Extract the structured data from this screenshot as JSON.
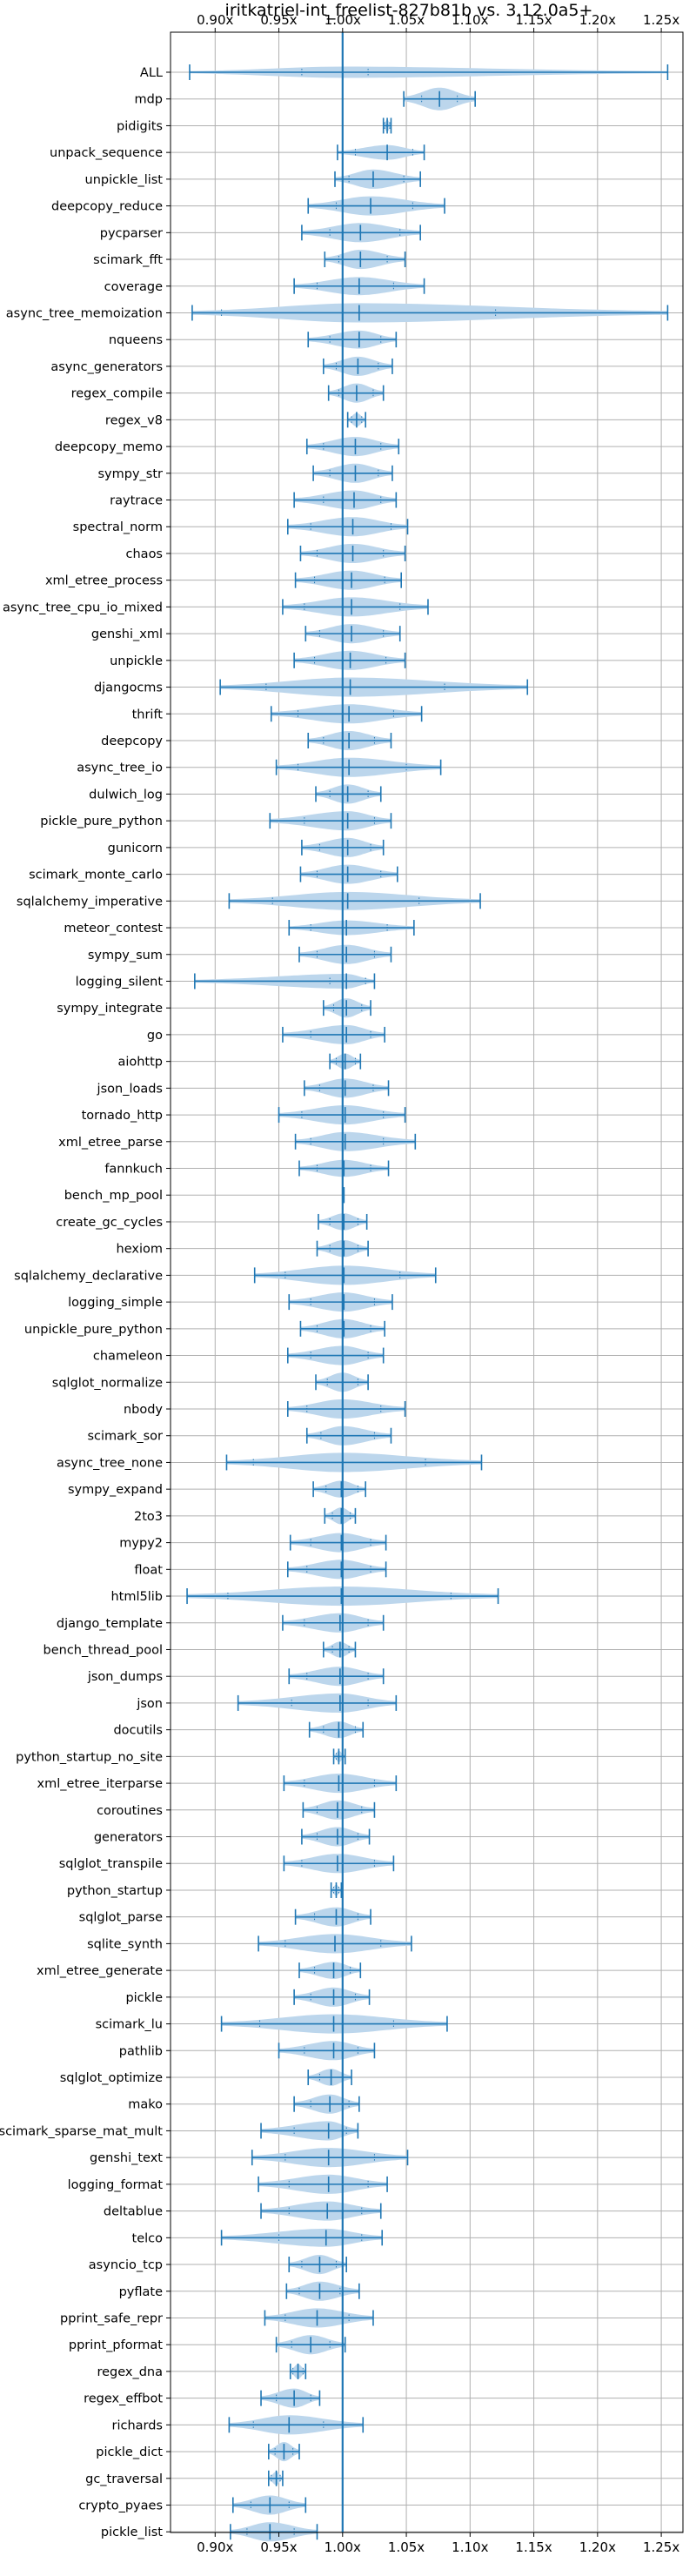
{
  "chart_data": {
    "type": "violin",
    "title": "iritkatriel-int_freelist-827b81b vs. 3.12.0a5+",
    "xlabel": "",
    "ylabel": "",
    "orientation": "horizontal",
    "xlim": [
      0.865,
      1.267
    ],
    "xticks": [
      0.9,
      0.95,
      1.0,
      1.05,
      1.1,
      1.15,
      1.2,
      1.25
    ],
    "xtick_labels": [
      "0.90x",
      "0.95x",
      "1.00x",
      "1.05x",
      "1.10x",
      "1.15x",
      "1.20x",
      "1.25x"
    ],
    "reference_line": 1.0,
    "grid": true,
    "colors": {
      "violin_fill": "#bcd6ec",
      "line": "#1f77b4",
      "grid": "#b0b0b0"
    },
    "benchmarks": [
      {
        "name": "ALL",
        "min": 0.88,
        "max": 1.255,
        "mean": 1.0,
        "median": 1.0,
        "q1": 0.968,
        "q3": 1.02,
        "width": 0.5
      },
      {
        "name": "mdp",
        "min": 1.048,
        "max": 1.104,
        "mean": 1.076,
        "median": 1.076,
        "q1": 1.062,
        "q3": 1.09,
        "width": 1.0
      },
      {
        "name": "pidigits",
        "min": 1.032,
        "max": 1.038,
        "mean": 1.035,
        "median": 1.035,
        "q1": 1.033,
        "q3": 1.037,
        "width": 0.55
      },
      {
        "name": "unpack_sequence",
        "min": 0.996,
        "max": 1.064,
        "mean": 1.035,
        "median": 1.035,
        "q1": 1.01,
        "q3": 1.055,
        "width": 0.65
      },
      {
        "name": "unpickle_list",
        "min": 0.994,
        "max": 1.061,
        "mean": 1.024,
        "median": 1.024,
        "q1": 1.005,
        "q3": 1.048,
        "width": 0.85
      },
      {
        "name": "deepcopy_reduce",
        "min": 0.973,
        "max": 1.08,
        "mean": 1.022,
        "median": 1.022,
        "q1": 0.995,
        "q3": 1.055,
        "width": 0.85
      },
      {
        "name": "pycparser",
        "min": 0.968,
        "max": 1.061,
        "mean": 1.014,
        "median": 1.014,
        "q1": 0.99,
        "q3": 1.045,
        "width": 0.85
      },
      {
        "name": "scimark_fft",
        "min": 0.986,
        "max": 1.049,
        "mean": 1.014,
        "median": 1.014,
        "q1": 0.997,
        "q3": 1.035,
        "width": 0.85
      },
      {
        "name": "coverage",
        "min": 0.962,
        "max": 1.064,
        "mean": 1.013,
        "median": 1.013,
        "q1": 0.98,
        "q3": 1.04,
        "width": 0.8
      },
      {
        "name": "async_tree_memoization",
        "min": 0.882,
        "max": 1.255,
        "mean": 1.013,
        "median": 1.013,
        "q1": 0.905,
        "q3": 1.12,
        "width": 0.85
      },
      {
        "name": "nqueens",
        "min": 0.973,
        "max": 1.042,
        "mean": 1.013,
        "median": 1.013,
        "q1": 0.99,
        "q3": 1.03,
        "width": 0.8
      },
      {
        "name": "async_generators",
        "min": 0.985,
        "max": 1.039,
        "mean": 1.012,
        "median": 1.012,
        "q1": 0.995,
        "q3": 1.028,
        "width": 0.85
      },
      {
        "name": "regex_compile",
        "min": 0.989,
        "max": 1.032,
        "mean": 1.011,
        "median": 1.011,
        "q1": 0.997,
        "q3": 1.024,
        "width": 0.85
      },
      {
        "name": "regex_v8",
        "min": 1.004,
        "max": 1.018,
        "mean": 1.011,
        "median": 1.011,
        "q1": 1.007,
        "q3": 1.015,
        "width": 0.6
      },
      {
        "name": "deepcopy_memo",
        "min": 0.972,
        "max": 1.044,
        "mean": 1.01,
        "median": 1.01,
        "q1": 0.985,
        "q3": 1.03,
        "width": 0.85
      },
      {
        "name": "sympy_str",
        "min": 0.977,
        "max": 1.039,
        "mean": 1.01,
        "median": 1.01,
        "q1": 0.99,
        "q3": 1.028,
        "width": 0.85
      },
      {
        "name": "raytrace",
        "min": 0.962,
        "max": 1.042,
        "mean": 1.009,
        "median": 1.009,
        "q1": 0.985,
        "q3": 1.03,
        "width": 0.85
      },
      {
        "name": "spectral_norm",
        "min": 0.957,
        "max": 1.051,
        "mean": 1.008,
        "median": 1.008,
        "q1": 0.975,
        "q3": 1.038,
        "width": 0.85
      },
      {
        "name": "chaos",
        "min": 0.967,
        "max": 1.049,
        "mean": 1.008,
        "median": 1.008,
        "q1": 0.98,
        "q3": 1.032,
        "width": 0.85
      },
      {
        "name": "xml_etree_process",
        "min": 0.963,
        "max": 1.046,
        "mean": 1.007,
        "median": 1.007,
        "q1": 0.978,
        "q3": 1.033,
        "width": 0.85
      },
      {
        "name": "async_tree_cpu_io_mixed",
        "min": 0.953,
        "max": 1.067,
        "mean": 1.007,
        "median": 1.007,
        "q1": 0.97,
        "q3": 1.045,
        "width": 0.85
      },
      {
        "name": "genshi_xml",
        "min": 0.971,
        "max": 1.045,
        "mean": 1.007,
        "median": 1.007,
        "q1": 0.982,
        "q3": 1.032,
        "width": 0.85
      },
      {
        "name": "unpickle",
        "min": 0.962,
        "max": 1.049,
        "mean": 1.006,
        "median": 1.006,
        "q1": 0.978,
        "q3": 1.034,
        "width": 0.85
      },
      {
        "name": "djangocms",
        "min": 0.904,
        "max": 1.145,
        "mean": 1.006,
        "median": 1.006,
        "q1": 0.94,
        "q3": 1.08,
        "width": 0.85
      },
      {
        "name": "thrift",
        "min": 0.944,
        "max": 1.062,
        "mean": 1.005,
        "median": 1.005,
        "q1": 0.965,
        "q3": 1.04,
        "width": 0.85
      },
      {
        "name": "deepcopy",
        "min": 0.973,
        "max": 1.038,
        "mean": 1.005,
        "median": 1.005,
        "q1": 0.985,
        "q3": 1.025,
        "width": 0.85
      },
      {
        "name": "async_tree_io",
        "min": 0.948,
        "max": 1.077,
        "mean": 1.005,
        "median": 1.005,
        "q1": 0.965,
        "q3": 1.05,
        "width": 0.85
      },
      {
        "name": "dulwich_log",
        "min": 0.979,
        "max": 1.03,
        "mean": 1.004,
        "median": 1.004,
        "q1": 0.99,
        "q3": 1.02,
        "width": 0.85
      },
      {
        "name": "pickle_pure_python",
        "min": 0.943,
        "max": 1.038,
        "mean": 1.004,
        "median": 1.004,
        "q1": 0.97,
        "q3": 1.025,
        "width": 0.85
      },
      {
        "name": "gunicorn",
        "min": 0.968,
        "max": 1.032,
        "mean": 1.004,
        "median": 1.004,
        "q1": 0.982,
        "q3": 1.022,
        "width": 0.85
      },
      {
        "name": "scimark_monte_carlo",
        "min": 0.967,
        "max": 1.043,
        "mean": 1.004,
        "median": 1.004,
        "q1": 0.98,
        "q3": 1.03,
        "width": 0.85
      },
      {
        "name": "sqlalchemy_imperative",
        "min": 0.911,
        "max": 1.108,
        "mean": 1.004,
        "median": 1.004,
        "q1": 0.945,
        "q3": 1.06,
        "width": 0.8
      },
      {
        "name": "meteor_contest",
        "min": 0.958,
        "max": 1.056,
        "mean": 1.003,
        "median": 1.003,
        "q1": 0.975,
        "q3": 1.035,
        "width": 0.65
      },
      {
        "name": "sympy_sum",
        "min": 0.966,
        "max": 1.038,
        "mean": 1.003,
        "median": 1.003,
        "q1": 0.98,
        "q3": 1.025,
        "width": 0.85
      },
      {
        "name": "logging_silent",
        "min": 0.884,
        "max": 1.025,
        "mean": 1.003,
        "median": 1.003,
        "q1": 0.99,
        "q3": 1.018,
        "width": 0.65
      },
      {
        "name": "sympy_integrate",
        "min": 0.985,
        "max": 1.022,
        "mean": 1.003,
        "median": 1.003,
        "q1": 0.993,
        "q3": 1.015,
        "width": 0.85
      },
      {
        "name": "go",
        "min": 0.953,
        "max": 1.033,
        "mean": 1.003,
        "median": 1.003,
        "q1": 0.975,
        "q3": 1.022,
        "width": 0.85
      },
      {
        "name": "aiohttp",
        "min": 0.99,
        "max": 1.014,
        "mean": 1.002,
        "median": 1.002,
        "q1": 0.995,
        "q3": 1.01,
        "width": 0.7
      },
      {
        "name": "json_loads",
        "min": 0.97,
        "max": 1.036,
        "mean": 1.002,
        "median": 1.002,
        "q1": 0.982,
        "q3": 1.024,
        "width": 0.85
      },
      {
        "name": "tornado_http",
        "min": 0.95,
        "max": 1.049,
        "mean": 1.002,
        "median": 1.002,
        "q1": 0.968,
        "q3": 1.032,
        "width": 0.85
      },
      {
        "name": "xml_etree_parse",
        "min": 0.963,
        "max": 1.057,
        "mean": 1.002,
        "median": 1.002,
        "q1": 0.975,
        "q3": 1.032,
        "width": 0.85
      },
      {
        "name": "fannkuch",
        "min": 0.966,
        "max": 1.036,
        "mean": 1.001,
        "median": 1.001,
        "q1": 0.98,
        "q3": 1.022,
        "width": 0.75
      },
      {
        "name": "bench_mp_pool",
        "min": 1.001,
        "max": 1.001,
        "mean": 1.001,
        "median": 1.001,
        "q1": 1.001,
        "q3": 1.001,
        "width": 0.0
      },
      {
        "name": "create_gc_cycles",
        "min": 0.981,
        "max": 1.019,
        "mean": 1.001,
        "median": 1.001,
        "q1": 0.99,
        "q3": 1.012,
        "width": 0.75
      },
      {
        "name": "hexiom",
        "min": 0.98,
        "max": 1.02,
        "mean": 1.001,
        "median": 1.001,
        "q1": 0.99,
        "q3": 1.012,
        "width": 0.75
      },
      {
        "name": "sqlalchemy_declarative",
        "min": 0.931,
        "max": 1.073,
        "mean": 1.001,
        "median": 1.001,
        "q1": 0.955,
        "q3": 1.045,
        "width": 0.85
      },
      {
        "name": "logging_simple",
        "min": 0.958,
        "max": 1.039,
        "mean": 1.001,
        "median": 1.001,
        "q1": 0.975,
        "q3": 1.025,
        "width": 0.85
      },
      {
        "name": "unpickle_pure_python",
        "min": 0.967,
        "max": 1.033,
        "mean": 1.001,
        "median": 1.001,
        "q1": 0.98,
        "q3": 1.022,
        "width": 0.85
      },
      {
        "name": "chameleon",
        "min": 0.957,
        "max": 1.032,
        "mean": 1.0,
        "median": 1.0,
        "q1": 0.975,
        "q3": 1.02,
        "width": 0.85
      },
      {
        "name": "sqlglot_normalize",
        "min": 0.979,
        "max": 1.02,
        "mean": 1.0,
        "median": 1.0,
        "q1": 0.988,
        "q3": 1.012,
        "width": 0.85
      },
      {
        "name": "nbody",
        "min": 0.957,
        "max": 1.049,
        "mean": 1.0,
        "median": 1.0,
        "q1": 0.972,
        "q3": 1.03,
        "width": 0.85
      },
      {
        "name": "scimark_sor",
        "min": 0.972,
        "max": 1.038,
        "mean": 1.0,
        "median": 1.0,
        "q1": 0.983,
        "q3": 1.025,
        "width": 0.85
      },
      {
        "name": "async_tree_none",
        "min": 0.909,
        "max": 1.109,
        "mean": 1.0,
        "median": 1.0,
        "q1": 0.93,
        "q3": 1.065,
        "width": 0.85
      },
      {
        "name": "sympy_expand",
        "min": 0.977,
        "max": 1.018,
        "mean": 0.999,
        "median": 0.999,
        "q1": 0.987,
        "q3": 1.012,
        "width": 0.75
      },
      {
        "name": "2to3",
        "min": 0.986,
        "max": 1.01,
        "mean": 0.999,
        "median": 0.999,
        "q1": 0.992,
        "q3": 1.006,
        "width": 0.75
      },
      {
        "name": "mypy2",
        "min": 0.959,
        "max": 1.034,
        "mean": 0.999,
        "median": 0.999,
        "q1": 0.975,
        "q3": 1.022,
        "width": 0.85
      },
      {
        "name": "float",
        "min": 0.957,
        "max": 1.034,
        "mean": 0.999,
        "median": 0.999,
        "q1": 0.972,
        "q3": 1.022,
        "width": 0.85
      },
      {
        "name": "html5lib",
        "min": 0.878,
        "max": 1.122,
        "mean": 0.999,
        "median": 0.999,
        "q1": 0.91,
        "q3": 1.085,
        "width": 0.85
      },
      {
        "name": "django_template",
        "min": 0.953,
        "max": 1.032,
        "mean": 0.998,
        "median": 0.998,
        "q1": 0.97,
        "q3": 1.02,
        "width": 0.85
      },
      {
        "name": "bench_thread_pool",
        "min": 0.985,
        "max": 1.01,
        "mean": 0.998,
        "median": 0.998,
        "q1": 0.992,
        "q3": 1.005,
        "width": 0.7
      },
      {
        "name": "json_dumps",
        "min": 0.958,
        "max": 1.032,
        "mean": 0.998,
        "median": 0.998,
        "q1": 0.972,
        "q3": 1.02,
        "width": 0.85
      },
      {
        "name": "json",
        "min": 0.918,
        "max": 1.042,
        "mean": 0.998,
        "median": 0.998,
        "q1": 0.96,
        "q3": 1.02,
        "width": 0.85
      },
      {
        "name": "docutils",
        "min": 0.974,
        "max": 1.016,
        "mean": 0.997,
        "median": 0.997,
        "q1": 0.985,
        "q3": 1.01,
        "width": 0.75
      },
      {
        "name": "python_startup_no_site",
        "min": 0.993,
        "max": 1.002,
        "mean": 0.997,
        "median": 0.997,
        "q1": 0.995,
        "q3": 1.0,
        "width": 0.5
      },
      {
        "name": "xml_etree_iterparse",
        "min": 0.954,
        "max": 1.042,
        "mean": 0.997,
        "median": 0.997,
        "q1": 0.97,
        "q3": 1.025,
        "width": 0.85
      },
      {
        "name": "coroutines",
        "min": 0.969,
        "max": 1.025,
        "mean": 0.996,
        "median": 0.996,
        "q1": 0.98,
        "q3": 1.015,
        "width": 0.85
      },
      {
        "name": "generators",
        "min": 0.968,
        "max": 1.021,
        "mean": 0.996,
        "median": 0.996,
        "q1": 0.98,
        "q3": 1.012,
        "width": 0.85
      },
      {
        "name": "sqlglot_transpile",
        "min": 0.954,
        "max": 1.04,
        "mean": 0.996,
        "median": 0.996,
        "q1": 0.968,
        "q3": 1.025,
        "width": 0.85
      },
      {
        "name": "python_startup",
        "min": 0.991,
        "max": 0.999,
        "mean": 0.995,
        "median": 0.995,
        "q1": 0.993,
        "q3": 0.997,
        "width": 0.5
      },
      {
        "name": "sqlglot_parse",
        "min": 0.963,
        "max": 1.022,
        "mean": 0.995,
        "median": 0.995,
        "q1": 0.978,
        "q3": 1.012,
        "width": 0.85
      },
      {
        "name": "sqlite_synth",
        "min": 0.934,
        "max": 1.054,
        "mean": 0.994,
        "median": 0.994,
        "q1": 0.955,
        "q3": 1.03,
        "width": 0.85
      },
      {
        "name": "xml_etree_generate",
        "min": 0.966,
        "max": 1.014,
        "mean": 0.993,
        "median": 0.993,
        "q1": 0.978,
        "q3": 1.006,
        "width": 0.75
      },
      {
        "name": "pickle",
        "min": 0.962,
        "max": 1.021,
        "mean": 0.993,
        "median": 0.993,
        "q1": 0.975,
        "q3": 1.01,
        "width": 0.85
      },
      {
        "name": "scimark_lu",
        "min": 0.905,
        "max": 1.082,
        "mean": 0.993,
        "median": 0.993,
        "q1": 0.935,
        "q3": 1.04,
        "width": 0.85
      },
      {
        "name": "pathlib",
        "min": 0.95,
        "max": 1.025,
        "mean": 0.993,
        "median": 0.993,
        "q1": 0.97,
        "q3": 1.012,
        "width": 0.85
      },
      {
        "name": "sqlglot_optimize",
        "min": 0.973,
        "max": 1.007,
        "mean": 0.991,
        "median": 0.991,
        "q1": 0.982,
        "q3": 1.0,
        "width": 0.75
      },
      {
        "name": "mako",
        "min": 0.962,
        "max": 1.013,
        "mean": 0.99,
        "median": 0.99,
        "q1": 0.975,
        "q3": 1.005,
        "width": 0.85
      },
      {
        "name": "scimark_sparse_mat_mult",
        "min": 0.936,
        "max": 1.012,
        "mean": 0.989,
        "median": 0.989,
        "q1": 0.962,
        "q3": 1.003,
        "width": 0.85
      },
      {
        "name": "genshi_text",
        "min": 0.929,
        "max": 1.051,
        "mean": 0.989,
        "median": 0.989,
        "q1": 0.955,
        "q3": 1.025,
        "width": 0.85
      },
      {
        "name": "logging_format",
        "min": 0.934,
        "max": 1.035,
        "mean": 0.989,
        "median": 0.989,
        "q1": 0.958,
        "q3": 1.02,
        "width": 0.85
      },
      {
        "name": "deltablue",
        "min": 0.936,
        "max": 1.03,
        "mean": 0.988,
        "median": 0.988,
        "q1": 0.958,
        "q3": 1.015,
        "width": 0.85
      },
      {
        "name": "telco",
        "min": 0.905,
        "max": 1.031,
        "mean": 0.987,
        "median": 0.987,
        "q1": 0.95,
        "q3": 1.015,
        "width": 0.8
      },
      {
        "name": "asyncio_tcp",
        "min": 0.958,
        "max": 1.003,
        "mean": 0.982,
        "median": 0.982,
        "q1": 0.968,
        "q3": 0.995,
        "width": 0.85
      },
      {
        "name": "pyflate",
        "min": 0.956,
        "max": 1.013,
        "mean": 0.982,
        "median": 0.982,
        "q1": 0.966,
        "q3": 0.998,
        "width": 0.85
      },
      {
        "name": "pprint_safe_repr",
        "min": 0.939,
        "max": 1.024,
        "mean": 0.98,
        "median": 0.98,
        "q1": 0.955,
        "q3": 1.005,
        "width": 0.85
      },
      {
        "name": "pprint_pformat",
        "min": 0.948,
        "max": 1.002,
        "mean": 0.975,
        "median": 0.975,
        "q1": 0.96,
        "q3": 0.99,
        "width": 0.85
      },
      {
        "name": "regex_dna",
        "min": 0.959,
        "max": 0.971,
        "mean": 0.965,
        "median": 0.965,
        "q1": 0.961,
        "q3": 0.969,
        "width": 0.65
      },
      {
        "name": "regex_effbot",
        "min": 0.936,
        "max": 0.982,
        "mean": 0.962,
        "median": 0.962,
        "q1": 0.948,
        "q3": 0.975,
        "width": 0.85
      },
      {
        "name": "richards",
        "min": 0.911,
        "max": 1.016,
        "mean": 0.958,
        "median": 0.958,
        "q1": 0.93,
        "q3": 0.985,
        "width": 0.85
      },
      {
        "name": "pickle_dict",
        "min": 0.942,
        "max": 0.966,
        "mean": 0.954,
        "median": 0.954,
        "q1": 0.947,
        "q3": 0.961,
        "width": 0.85
      },
      {
        "name": "gc_traversal",
        "min": 0.942,
        "max": 0.953,
        "mean": 0.948,
        "median": 0.948,
        "q1": 0.944,
        "q3": 0.951,
        "width": 0.6
      },
      {
        "name": "crypto_pyaes",
        "min": 0.914,
        "max": 0.971,
        "mean": 0.943,
        "median": 0.943,
        "q1": 0.928,
        "q3": 0.958,
        "width": 0.85
      },
      {
        "name": "pickle_list",
        "min": 0.912,
        "max": 0.98,
        "mean": 0.943,
        "median": 0.943,
        "q1": 0.925,
        "q3": 0.962,
        "width": 0.85
      }
    ]
  }
}
